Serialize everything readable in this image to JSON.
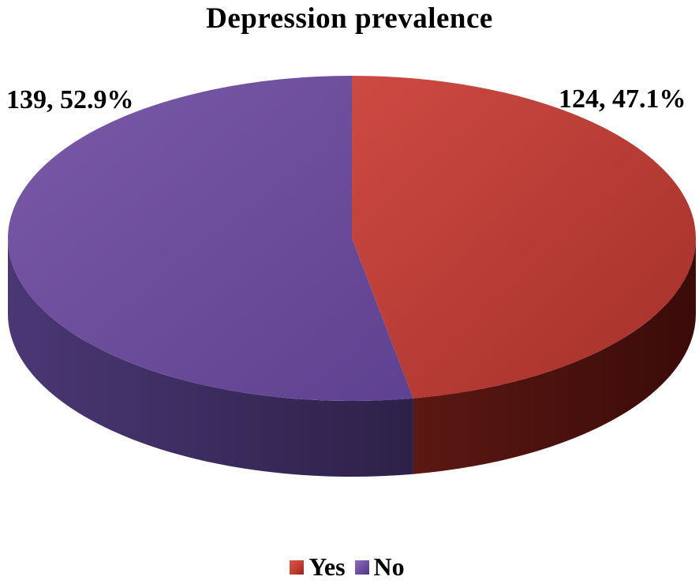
{
  "chart_data": {
    "type": "pie",
    "title": "Depression prevalence",
    "categories": [
      "Yes",
      "No"
    ],
    "values": [
      124,
      139
    ],
    "percentages": [
      "47.1%",
      "52.9%"
    ],
    "data_labels": [
      "124, 47.1%",
      "139, 52.9%"
    ],
    "colors": [
      "#c0392b",
      "#6a4a9c"
    ],
    "legend": {
      "position": "bottom",
      "entries": [
        "Yes",
        "No"
      ]
    },
    "style": "3d"
  }
}
